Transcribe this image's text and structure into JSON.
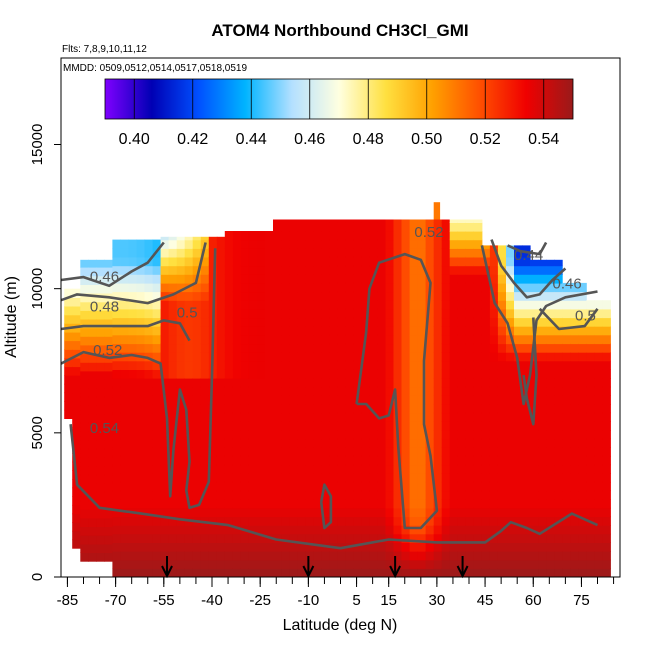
{
  "chart_data": {
    "type": "heatmap",
    "title": "ATOM4 Northbound CH3Cl_GMI",
    "subtitle_flights": "Flts: 7,8,9,10,11,12",
    "subtitle_dates": "MMDD: 0509,0512,0514,0517,0518,0519",
    "xlabel": "Latitude (deg N)",
    "ylabel": "Altitude (m)",
    "xlim": [
      -87,
      87
    ],
    "ylim": [
      0,
      18000
    ],
    "x_ticks": [
      -85,
      -70,
      -55,
      -40,
      -25,
      -10,
      5,
      15,
      30,
      45,
      60,
      75
    ],
    "x_minor_ticks": [
      -85,
      -80,
      -75,
      -70,
      -65,
      -60,
      -55,
      -50,
      -45,
      -40,
      -35,
      -30,
      -25,
      -20,
      -15,
      -10,
      -5,
      0,
      5,
      10,
      15,
      20,
      25,
      30,
      35,
      40,
      45,
      50,
      55,
      60,
      65,
      70,
      75,
      80,
      85
    ],
    "y_ticks": [
      0,
      5000,
      10000,
      15000
    ],
    "colorbar": {
      "min": 0.39,
      "max": 0.55,
      "ticks": [
        0.4,
        0.42,
        0.44,
        0.46,
        0.48,
        0.5,
        0.52,
        0.54
      ],
      "tick_labels": [
        "0.40",
        "0.42",
        "0.44",
        "0.46",
        "0.48",
        "0.50",
        "0.52",
        "0.54"
      ],
      "colors": [
        "#7f00ff",
        "#0000b4",
        "#0050ff",
        "#00b4ff",
        "#b4e0ff",
        "#ffffe0",
        "#ffe040",
        "#ffa000",
        "#ff5000",
        "#f00000",
        "#9a1a1a"
      ]
    },
    "profile_markers_lat": [
      -54,
      -10,
      17,
      38
    ],
    "contour_labels": [
      {
        "text": "0.46",
        "lat": -78,
        "alt": 10250
      },
      {
        "text": "0.48",
        "lat": -78,
        "alt": 9200
      },
      {
        "text": "0.5",
        "lat": -51,
        "alt": 9000
      },
      {
        "text": "0.52",
        "lat": -77,
        "alt": 7700
      },
      {
        "text": "0.54",
        "lat": -78,
        "alt": 5000
      },
      {
        "text": "0.52",
        "lat": 23,
        "alt": 11800
      },
      {
        "text": "0.44",
        "lat": 54,
        "alt": 11000
      },
      {
        "text": "0.46",
        "lat": 66,
        "alt": 10000
      },
      {
        "text": "0.5",
        "lat": 73,
        "alt": 8900
      }
    ],
    "grid": false
  }
}
